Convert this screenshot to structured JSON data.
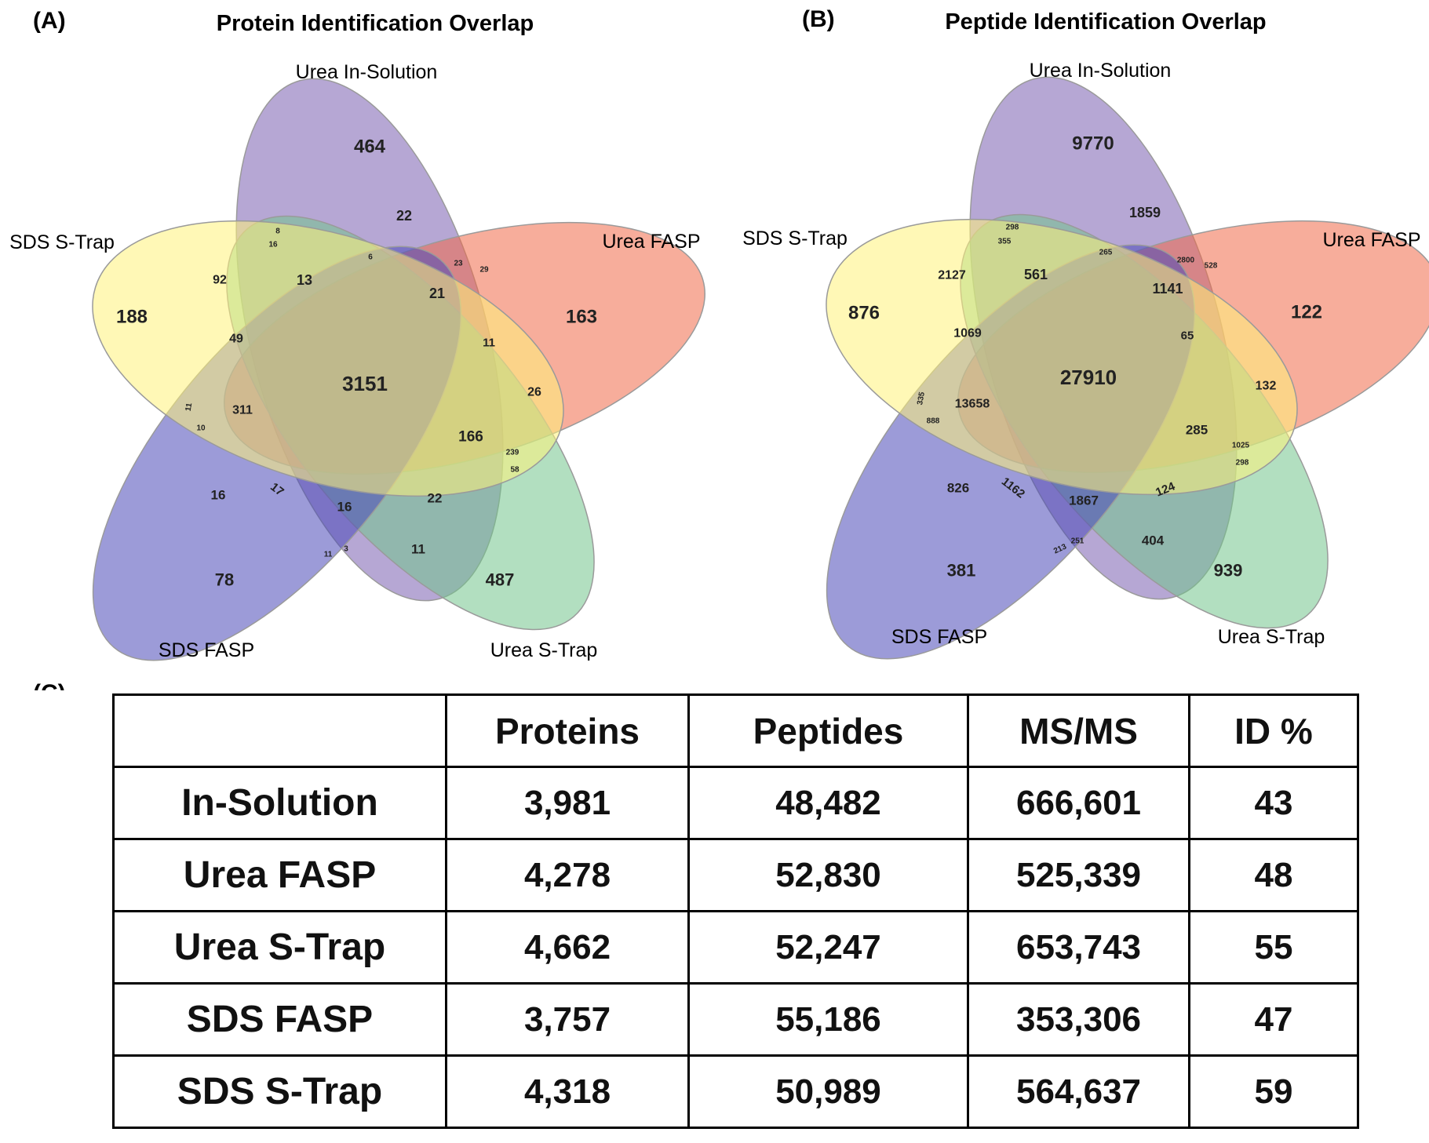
{
  "panels": [
    {
      "label": "(A)",
      "title": "Protein Identification Overlap",
      "sets": [
        {
          "name": "Urea In-Solution",
          "color": "#7a5fb0"
        },
        {
          "name": "Urea FASP",
          "color": "#f06a48"
        },
        {
          "name": "Urea S-Trap",
          "color": "#72c48c"
        },
        {
          "name": "SDS FASP",
          "color": "#4a48b8"
        },
        {
          "name": "SDS S-Trap",
          "color": "#fff27a"
        }
      ],
      "regions": [
        "464",
        "22",
        "8",
        "16",
        "6",
        "23",
        "29",
        "13",
        "92",
        "21",
        "188",
        "163",
        "49",
        "11",
        "3151",
        "26",
        "11",
        "10",
        "311",
        "166",
        "239",
        "58",
        "16",
        "17",
        "16",
        "22",
        "11",
        "3",
        "11",
        "78",
        "487"
      ]
    },
    {
      "label": "(B)",
      "title": "Peptide Identification Overlap",
      "sets": [
        {
          "name": "Urea In-Solution",
          "color": "#7a5fb0"
        },
        {
          "name": "Urea FASP",
          "color": "#f06a48"
        },
        {
          "name": "Urea S-Trap",
          "color": "#72c48c"
        },
        {
          "name": "SDS FASP",
          "color": "#4a48b8"
        },
        {
          "name": "SDS S-Trap",
          "color": "#fff27a"
        }
      ],
      "regions": [
        "9770",
        "1859",
        "298",
        "355",
        "265",
        "2800",
        "528",
        "561",
        "2127",
        "1141",
        "876",
        "122",
        "1069",
        "65",
        "27910",
        "132",
        "335",
        "888",
        "13658",
        "285",
        "1025",
        "298",
        "826",
        "1162",
        "1867",
        "124",
        "213",
        "251",
        "404",
        "381",
        "939"
      ]
    }
  ],
  "table": {
    "label": "(C)",
    "headers": [
      "",
      "Proteins",
      "Peptides",
      "MS/MS",
      "ID %"
    ],
    "rows": [
      [
        "In-Solution",
        "3,981",
        "48,482",
        "666,601",
        "43"
      ],
      [
        "Urea FASP",
        "4,278",
        "52,830",
        "525,339",
        "48"
      ],
      [
        "Urea S-Trap",
        "4,662",
        "52,247",
        "653,743",
        "55"
      ],
      [
        "SDS FASP",
        "3,757",
        "55,186",
        "353,306",
        "47"
      ],
      [
        "SDS S-Trap",
        "4,318",
        "50,989",
        "564,637",
        "59"
      ]
    ]
  }
}
